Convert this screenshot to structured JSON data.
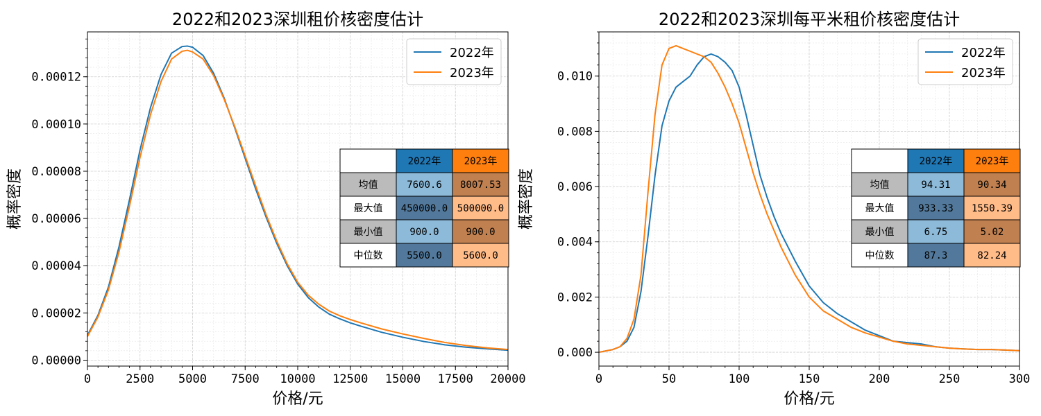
{
  "chart_data": [
    {
      "type": "line",
      "title": "2022和2023深圳租价核密度估计",
      "xlabel": "价格/元",
      "ylabel": "概率密度",
      "xlim": [
        0,
        20000
      ],
      "ylim": [
        -2.5e-06,
        0.000139
      ],
      "xticks": [
        0,
        2500,
        5000,
        7500,
        10000,
        12500,
        15000,
        17500,
        20000
      ],
      "xtick_labels": [
        "0",
        "2500",
        "5000",
        "7500",
        "10000",
        "12500",
        "15000",
        "17500",
        "20000"
      ],
      "yticks": [
        0,
        2e-05,
        4e-05,
        6e-05,
        8e-05,
        0.0001,
        0.00012
      ],
      "ytick_labels": [
        "0.00000",
        "0.00002",
        "0.00004",
        "0.00006",
        "0.00008",
        "0.00010",
        "0.00012"
      ],
      "grid": true,
      "legend_position": "top-right",
      "series": [
        {
          "name": "2022年",
          "color": "#1f77b4",
          "x": [
            0,
            500,
            1000,
            1500,
            2000,
            2500,
            3000,
            3500,
            4000,
            4500,
            4750,
            5000,
            5500,
            6000,
            6500,
            7000,
            7500,
            8000,
            8500,
            9000,
            9500,
            10000,
            10500,
            11000,
            11500,
            12000,
            12500,
            13000,
            14000,
            15000,
            16000,
            17000,
            18000,
            19000,
            20000
          ],
          "y": [
            1.05e-05,
            1.9e-05,
            3.1e-05,
            4.8e-05,
            6.8e-05,
            8.9e-05,
            0.000107,
            0.000121,
            0.00013,
            0.0001328,
            0.000133,
            0.0001325,
            0.000129,
            0.0001215,
            0.000111,
            9.85e-05,
            8.55e-05,
            7.25e-05,
            6.05e-05,
            4.95e-05,
            4e-05,
            3.22e-05,
            2.65e-05,
            2.25e-05,
            1.95e-05,
            1.75e-05,
            1.58e-05,
            1.44e-05,
            1.18e-05,
            9.7e-06,
            7.9e-06,
            6.5e-06,
            5.5e-06,
            4.8e-06,
            4.2e-06
          ]
        },
        {
          "name": "2023年",
          "color": "#ff7f0e",
          "x": [
            0,
            500,
            1000,
            1500,
            2000,
            2500,
            3000,
            3500,
            4000,
            4500,
            4750,
            5000,
            5500,
            6000,
            6500,
            7000,
            7500,
            8000,
            8500,
            9000,
            9500,
            10000,
            10500,
            11000,
            11500,
            12000,
            12500,
            13000,
            14000,
            15000,
            16000,
            17000,
            18000,
            19000,
            20000
          ],
          "y": [
            1e-05,
            1.83e-05,
            2.98e-05,
            4.58e-05,
            6.52e-05,
            8.58e-05,
            0.000104,
            0.000118,
            0.0001275,
            0.0001308,
            0.0001312,
            0.0001305,
            0.0001275,
            0.0001205,
            0.0001105,
            9.9e-05,
            8.65e-05,
            7.38e-05,
            6.15e-05,
            5.05e-05,
            4.08e-05,
            3.3e-05,
            2.75e-05,
            2.37e-05,
            2.08e-05,
            1.88e-05,
            1.72e-05,
            1.58e-05,
            1.32e-05,
            1.11e-05,
            9.2e-06,
            7.5e-06,
            6.2e-06,
            5.2e-06,
            4.5e-06
          ]
        }
      ],
      "table": {
        "col_labels": [
          "",
          "2022年",
          "2023年"
        ],
        "header_colors": [
          "#ffffff",
          "#1f77b4",
          "#ff7f0e"
        ],
        "rows": [
          {
            "label": "均值",
            "values": [
              "7600.6",
              "8007.53"
            ],
            "colors": [
              "#bbbbbb",
              "#8dbad9",
              "#c08050"
            ]
          },
          {
            "label": "最大值",
            "values": [
              "450000.0",
              "500000.0"
            ],
            "colors": [
              "#ffffff",
              "#52799b",
              "#ffbb88"
            ]
          },
          {
            "label": "最小值",
            "values": [
              "900.0",
              "900.0"
            ],
            "colors": [
              "#bbbbbb",
              "#8dbad9",
              "#c08050"
            ]
          },
          {
            "label": "中位数",
            "values": [
              "5500.0",
              "5600.0"
            ],
            "colors": [
              "#ffffff",
              "#52799b",
              "#ffbb88"
            ]
          }
        ]
      }
    },
    {
      "type": "line",
      "title": "2022和2023深圳每平米租价核密度估计",
      "xlabel": "价格/元",
      "ylabel": "概率密度",
      "xlim": [
        0,
        300
      ],
      "ylim": [
        -0.0005,
        0.0116
      ],
      "xticks": [
        0,
        50,
        100,
        150,
        200,
        250,
        300
      ],
      "xtick_labels": [
        "0",
        "50",
        "100",
        "150",
        "200",
        "250",
        "300"
      ],
      "yticks": [
        0,
        0.002,
        0.004,
        0.006,
        0.008,
        0.01
      ],
      "ytick_labels": [
        "0.000",
        "0.002",
        "0.004",
        "0.006",
        "0.008",
        "0.010"
      ],
      "grid": true,
      "legend_position": "top-right",
      "series": [
        {
          "name": "2022年",
          "color": "#1f77b4",
          "x": [
            0,
            10,
            15,
            20,
            25,
            30,
            35,
            40,
            45,
            50,
            55,
            60,
            65,
            70,
            75,
            80,
            85,
            90,
            95,
            100,
            105,
            110,
            115,
            120,
            125,
            130,
            140,
            150,
            160,
            170,
            180,
            190,
            200,
            210,
            220,
            230,
            240,
            250,
            260,
            270,
            280,
            290,
            300
          ],
          "y": [
            0.0,
            0.0001,
            0.0002,
            0.0004,
            0.0009,
            0.0022,
            0.0042,
            0.0064,
            0.0082,
            0.0091,
            0.0096,
            0.0098,
            0.01,
            0.0104,
            0.0107,
            0.0108,
            0.0107,
            0.0105,
            0.0102,
            0.0096,
            0.0086,
            0.0075,
            0.0064,
            0.0056,
            0.0049,
            0.0043,
            0.0033,
            0.0024,
            0.0018,
            0.0014,
            0.0011,
            0.0008,
            0.0006,
            0.0004,
            0.00035,
            0.0003,
            0.0002,
            0.00015,
            0.00012,
            0.0001,
            0.0001,
            8e-05,
            6e-05
          ]
        },
        {
          "name": "2023年",
          "color": "#ff7f0e",
          "x": [
            0,
            10,
            15,
            20,
            25,
            30,
            35,
            40,
            45,
            50,
            55,
            60,
            65,
            70,
            75,
            80,
            85,
            90,
            95,
            100,
            105,
            110,
            115,
            120,
            125,
            130,
            140,
            150,
            160,
            170,
            180,
            190,
            200,
            210,
            220,
            230,
            240,
            250,
            260,
            270,
            280,
            290,
            300
          ],
          "y": [
            0.0,
            0.0001,
            0.0002,
            0.0005,
            0.0012,
            0.0028,
            0.0058,
            0.0086,
            0.0104,
            0.011,
            0.0111,
            0.011,
            0.0109,
            0.0108,
            0.0107,
            0.0105,
            0.0101,
            0.0096,
            0.009,
            0.0083,
            0.0074,
            0.0065,
            0.0057,
            0.005,
            0.0044,
            0.0038,
            0.0028,
            0.002,
            0.0015,
            0.0012,
            0.0009,
            0.0007,
            0.00055,
            0.0004,
            0.0003,
            0.00025,
            0.0002,
            0.00015,
            0.00012,
            0.0001,
            0.0001,
            8e-05,
            6e-05
          ]
        }
      ],
      "table": {
        "col_labels": [
          "",
          "2022年",
          "2023年"
        ],
        "header_colors": [
          "#ffffff",
          "#1f77b4",
          "#ff7f0e"
        ],
        "rows": [
          {
            "label": "均值",
            "values": [
              "94.31",
              "90.34"
            ],
            "colors": [
              "#bbbbbb",
              "#8dbad9",
              "#c08050"
            ]
          },
          {
            "label": "最大值",
            "values": [
              "933.33",
              "1550.39"
            ],
            "colors": [
              "#ffffff",
              "#52799b",
              "#ffbb88"
            ]
          },
          {
            "label": "最小值",
            "values": [
              "6.75",
              "5.02"
            ],
            "colors": [
              "#bbbbbb",
              "#8dbad9",
              "#c08050"
            ]
          },
          {
            "label": "中位数",
            "values": [
              "87.3",
              "82.24"
            ],
            "colors": [
              "#ffffff",
              "#52799b",
              "#ffbb88"
            ]
          }
        ]
      }
    }
  ]
}
